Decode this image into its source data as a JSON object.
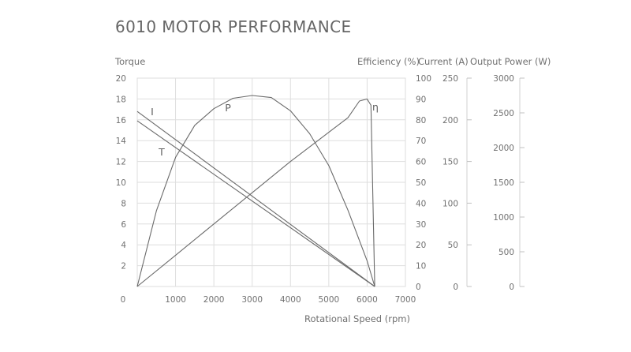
{
  "chart_data": {
    "type": "line",
    "title": "6010 MOTOR PERFORMANCE",
    "xlabel": "Rotational Speed (rpm)",
    "xlim": [
      0,
      7000
    ],
    "x_ticks": [
      0,
      1000,
      2000,
      3000,
      4000,
      5000,
      6000,
      7000
    ],
    "grid": true,
    "axes": {
      "torque": {
        "label": "Torque",
        "range": [
          0,
          20
        ],
        "ticks": [
          2,
          4,
          6,
          8,
          10,
          12,
          14,
          16,
          18,
          20
        ]
      },
      "efficiency": {
        "label": "Efficiency (%)",
        "range": [
          0,
          100
        ],
        "ticks": [
          0,
          10,
          20,
          30,
          40,
          50,
          60,
          70,
          80,
          90,
          100
        ]
      },
      "current": {
        "label": "Current (A)",
        "range": [
          0,
          250
        ],
        "ticks": [
          0,
          50,
          100,
          150,
          200,
          250
        ]
      },
      "power": {
        "label": "Output Power (W)",
        "range": [
          0,
          3000
        ],
        "ticks": [
          0,
          500,
          1000,
          1500,
          2000,
          2500,
          3000
        ]
      }
    },
    "series": [
      {
        "name": "I",
        "axis": "current",
        "x": [
          0,
          6200
        ],
        "y": [
          210,
          0
        ]
      },
      {
        "name": "T",
        "axis": "torque",
        "x": [
          0,
          6200
        ],
        "y": [
          15.9,
          0
        ]
      },
      {
        "name": "P",
        "axis": "power",
        "x": [
          0,
          500,
          1000,
          1500,
          2000,
          2500,
          3000,
          3500,
          4000,
          4500,
          5000,
          5500,
          6000,
          6200
        ],
        "y": [
          0,
          1090,
          1860,
          2320,
          2560,
          2710,
          2750,
          2720,
          2530,
          2200,
          1740,
          1100,
          370,
          0
        ]
      },
      {
        "name": "η",
        "axis": "efficiency",
        "x": [
          0,
          1000,
          2000,
          3000,
          4000,
          5000,
          5500,
          5800,
          6000,
          6100,
          6200
        ],
        "y": [
          0,
          15,
          30,
          45,
          60,
          74,
          81,
          89,
          90,
          87,
          0
        ]
      }
    ],
    "colors": {
      "lines": "#6a6a6a",
      "grid": "#dedede",
      "text": "#707070"
    }
  }
}
